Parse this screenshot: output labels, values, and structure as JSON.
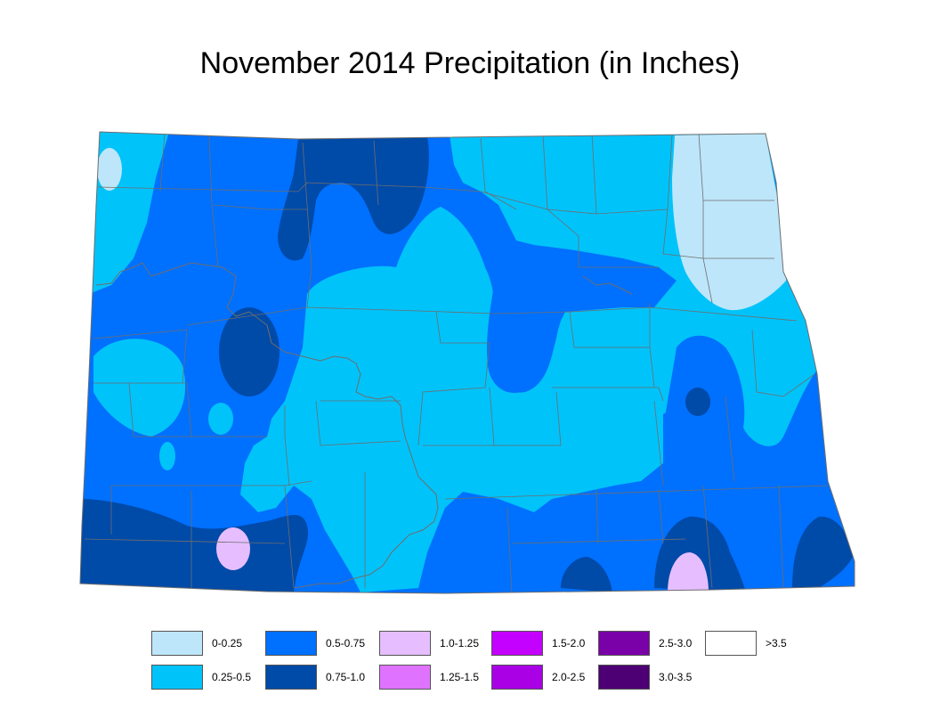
{
  "title": "November 2014 Precipitation (in Inches)",
  "map": {
    "region": "North Dakota",
    "colors": {
      "c0": "#bee6fa",
      "c1": "#00c3fa",
      "c2": "#0070ff",
      "c3": "#004aa8",
      "c4": "#e6beff",
      "c5": "#df73ff",
      "boundary": "#6e6e6e",
      "river": "#6e6e6e"
    }
  },
  "legend": [
    {
      "label": "0-0.25",
      "color": "#bee6fa"
    },
    {
      "label": "0.5-0.75",
      "color": "#0070ff"
    },
    {
      "label": "1.0-1.25",
      "color": "#e6beff"
    },
    {
      "label": "1.5-2.0",
      "color": "#c400ff"
    },
    {
      "label": "2.5-3.0",
      "color": "#7a00a8"
    },
    {
      "label": ">3.5",
      "color": "#ffffff"
    },
    {
      "label": "0.25-0.5",
      "color": "#00c3fa"
    },
    {
      "label": "0.75-1.0",
      "color": "#004aa8"
    },
    {
      "label": "1.25-1.5",
      "color": "#df73ff"
    },
    {
      "label": "2.0-2.5",
      "color": "#a900e6"
    },
    {
      "label": "3.0-3.5",
      "color": "#4c0073"
    }
  ]
}
